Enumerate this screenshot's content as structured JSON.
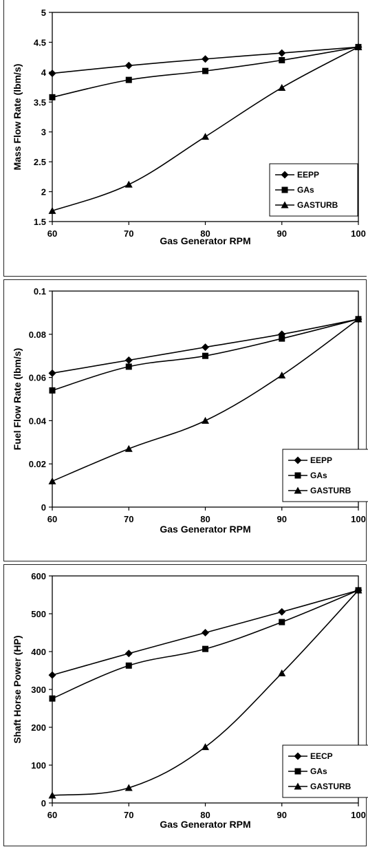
{
  "chart_data": [
    {
      "type": "line",
      "xlabel": "Gas Generator RPM",
      "ylabel": "Mass Flow Rate (lbm/s)",
      "xlim": [
        60,
        100
      ],
      "ylim": [
        1.5,
        5
      ],
      "x": [
        60,
        70,
        80,
        90,
        100
      ],
      "x_ticks": [
        "60",
        "70",
        "80",
        "90",
        "100"
      ],
      "y_ticks": [
        "5",
        "4.5",
        "4",
        "3.5",
        "3",
        "2.5",
        "2",
        "1.5"
      ],
      "y_tick_values": [
        5,
        4.5,
        4,
        3.5,
        3,
        2.5,
        2,
        1.5
      ],
      "grid": false,
      "legend_position": "bottom-right",
      "series": [
        {
          "name": "EEPP",
          "marker": "diamond",
          "values": [
            3.98,
            4.11,
            4.22,
            4.32,
            4.42
          ]
        },
        {
          "name": "GAs",
          "marker": "square",
          "values": [
            3.58,
            3.87,
            4.02,
            4.2,
            4.42
          ]
        },
        {
          "name": "GASTURB",
          "marker": "triangle",
          "values": [
            1.68,
            2.12,
            2.92,
            3.74,
            4.42
          ]
        }
      ]
    },
    {
      "type": "line",
      "xlabel": "Gas Generator RPM",
      "ylabel": "Fuel Flow Rate (lbm/s)",
      "xlim": [
        60,
        100
      ],
      "ylim": [
        0,
        0.1
      ],
      "x": [
        60,
        70,
        80,
        90,
        100
      ],
      "x_ticks": [
        "60",
        "70",
        "80",
        "90",
        "100"
      ],
      "y_ticks": [
        "0.1",
        "0.08",
        "0.06",
        "0.04",
        "0.02",
        "0"
      ],
      "y_tick_values": [
        0.1,
        0.08,
        0.06,
        0.04,
        0.02,
        0
      ],
      "grid": false,
      "legend_position": "bottom-right",
      "series": [
        {
          "name": "EEPP",
          "marker": "diamond",
          "values": [
            0.062,
            0.068,
            0.074,
            0.08,
            0.087
          ]
        },
        {
          "name": "GAs",
          "marker": "square",
          "values": [
            0.054,
            0.065,
            0.07,
            0.078,
            0.087
          ]
        },
        {
          "name": "GASTURB",
          "marker": "triangle",
          "values": [
            0.012,
            0.027,
            0.04,
            0.061,
            0.087
          ]
        }
      ]
    },
    {
      "type": "line",
      "xlabel": "Gas Generator RPM",
      "ylabel": "Shaft Horse Power (HP)",
      "xlim": [
        60,
        100
      ],
      "ylim": [
        0,
        600
      ],
      "x": [
        60,
        70,
        80,
        90,
        100
      ],
      "x_ticks": [
        "60",
        "70",
        "80",
        "90",
        "100"
      ],
      "y_ticks": [
        "600",
        "500",
        "400",
        "300",
        "200",
        "100",
        "0"
      ],
      "y_tick_values": [
        600,
        500,
        400,
        300,
        200,
        100,
        0
      ],
      "grid": false,
      "legend_position": "bottom-right",
      "series": [
        {
          "name": "EECP",
          "marker": "diamond",
          "values": [
            338,
            395,
            450,
            505,
            562
          ]
        },
        {
          "name": "GAs",
          "marker": "square",
          "values": [
            276,
            363,
            407,
            478,
            562
          ]
        },
        {
          "name": "GASTURB",
          "marker": "triangle",
          "values": [
            20,
            40,
            148,
            343,
            562
          ]
        }
      ]
    }
  ]
}
